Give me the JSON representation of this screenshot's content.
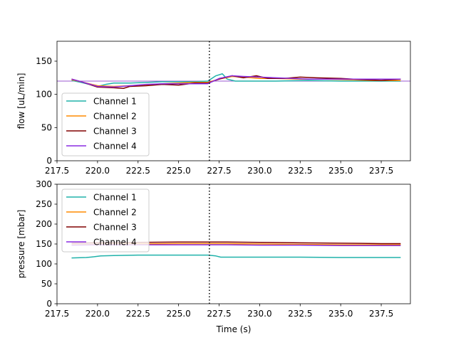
{
  "chart_data": [
    {
      "type": "line",
      "ylabel": "flow [uL/min]",
      "xlabel": "",
      "xlim": [
        217.5,
        239.3
      ],
      "ylim": [
        0,
        180
      ],
      "xticks": [
        "217.5",
        "220.0",
        "222.5",
        "225.0",
        "227.5",
        "230.0",
        "232.5",
        "235.0",
        "237.5"
      ],
      "yticks": [
        "0",
        "50",
        "100",
        "150"
      ],
      "reference_hline": 120,
      "reference_hline_color": "#9b59d0",
      "vline_x": 226.9,
      "legend_position": "lower-left",
      "series": [
        {
          "name": "Channel 1",
          "color": "#20b2aa",
          "x": [
            218.4,
            219.0,
            220.0,
            220.5,
            221.0,
            222.0,
            223.0,
            224.0,
            225.0,
            226.0,
            226.8,
            227.3,
            227.7,
            228.0,
            228.5,
            229.5,
            231.0,
            233.0,
            235.0,
            237.0,
            238.7
          ],
          "y": [
            121,
            118,
            112,
            115,
            117,
            117,
            118,
            119,
            119,
            119,
            120,
            128,
            131,
            123,
            120,
            120,
            120,
            121,
            120,
            120,
            120
          ]
        },
        {
          "name": "Channel 2",
          "color": "#ff8c00",
          "x": [
            218.4,
            219.0,
            220.0,
            221.0,
            222.0,
            223.0,
            224.0,
            225.0,
            226.0,
            226.8,
            227.5,
            228.3,
            229.0,
            230.0,
            231.0,
            232.5,
            234.0,
            235.5,
            237.0,
            238.7
          ],
          "y": [
            122,
            119,
            113,
            112,
            113,
            114,
            116,
            117,
            118,
            118,
            123,
            127,
            126,
            124,
            124,
            123,
            123,
            122,
            121,
            121
          ]
        },
        {
          "name": "Channel 3",
          "color": "#800000",
          "x": [
            218.4,
            219.0,
            220.0,
            221.0,
            221.6,
            222.0,
            223.0,
            224.0,
            225.0,
            226.0,
            226.8,
            227.5,
            228.3,
            229.0,
            229.8,
            230.5,
            231.5,
            232.5,
            233.5,
            235.0,
            236.5,
            237.5,
            238.7
          ],
          "y": [
            123,
            119,
            111,
            110,
            109,
            112,
            113,
            115,
            114,
            117,
            117,
            123,
            128,
            125,
            128,
            124,
            124,
            126,
            125,
            124,
            122,
            121,
            123
          ]
        },
        {
          "name": "Channel 4",
          "color": "#8a2be2",
          "x": [
            218.4,
            219.0,
            220.0,
            221.0,
            222.0,
            223.0,
            224.0,
            225.0,
            226.0,
            226.8,
            227.5,
            228.3,
            229.0,
            230.0,
            231.0,
            232.0,
            233.0,
            234.0,
            235.0,
            236.0,
            237.0,
            238.7
          ],
          "y": [
            123,
            119,
            112,
            111,
            113,
            115,
            116,
            116,
            116,
            116,
            124,
            128,
            127,
            126,
            125,
            124,
            123,
            123,
            123,
            123,
            123,
            123
          ]
        }
      ]
    },
    {
      "type": "line",
      "ylabel": "pressure [mbar]",
      "xlabel": "Time (s)",
      "xlim": [
        217.5,
        239.3
      ],
      "ylim": [
        0,
        300
      ],
      "xticks": [
        "217.5",
        "220.0",
        "222.5",
        "225.0",
        "227.5",
        "230.0",
        "232.5",
        "235.0",
        "237.5"
      ],
      "yticks": [
        "0",
        "50",
        "100",
        "150",
        "200",
        "250",
        "300"
      ],
      "vline_x": 226.9,
      "legend_position": "upper-left",
      "series": [
        {
          "name": "Channel 1",
          "color": "#20b2aa",
          "x": [
            218.4,
            219.3,
            219.8,
            220.2,
            221.0,
            222.5,
            224.0,
            225.5,
            226.8,
            227.3,
            227.6,
            228.5,
            230.0,
            232.5,
            235.0,
            237.5,
            238.7
          ],
          "y": [
            115,
            116,
            118,
            120,
            121,
            122,
            122,
            122,
            122,
            120,
            117,
            117,
            117,
            117,
            116,
            116,
            116
          ]
        },
        {
          "name": "Channel 2",
          "color": "#ff8c00",
          "x": [
            218.4,
            220.0,
            222.5,
            225.0,
            226.8,
            228.0,
            230.0,
            232.5,
            235.0,
            237.5,
            238.7
          ],
          "y": [
            148,
            149,
            150,
            151,
            151,
            151,
            150,
            149,
            148,
            148,
            148
          ]
        },
        {
          "name": "Channel 3",
          "color": "#800000",
          "x": [
            218.4,
            220.0,
            222.5,
            225.0,
            226.8,
            228.0,
            230.0,
            232.5,
            235.0,
            237.5,
            238.7
          ],
          "y": [
            152,
            153,
            154,
            155,
            155,
            155,
            154,
            153,
            152,
            151,
            151
          ]
        },
        {
          "name": "Channel 4",
          "color": "#8a2be2",
          "x": [
            218.4,
            220.0,
            222.5,
            225.0,
            226.8,
            228.0,
            230.0,
            232.5,
            235.0,
            237.5,
            238.7
          ],
          "y": [
            147,
            148,
            148,
            148,
            148,
            148,
            147,
            147,
            146,
            146,
            146
          ]
        }
      ]
    }
  ]
}
